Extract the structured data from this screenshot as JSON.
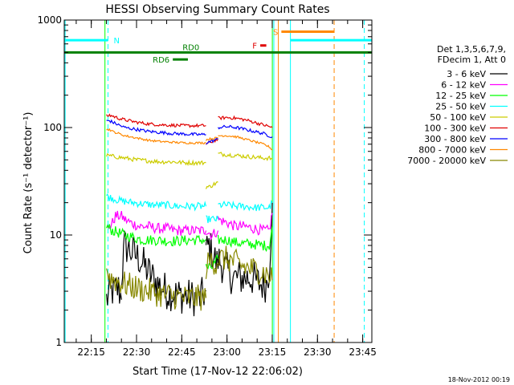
{
  "chart_data": {
    "type": "line",
    "title": "HESSI Observing Summary Count Rates",
    "xlabel": "Start Time (17-Nov-12 22:06:02)",
    "ylabel": "Count Rate (s⁻¹ detector⁻¹)",
    "y_scale": "log",
    "ylim": [
      1,
      1000
    ],
    "x_unit": "minutes after 22:06:02",
    "xlim": [
      0,
      102
    ],
    "x_tick_labels": [
      "22:15",
      "22:30",
      "22:45",
      "23:00",
      "23:15",
      "23:30",
      "23:45"
    ],
    "y_tick_labels": [
      "1",
      "10",
      "100",
      "1000"
    ],
    "legend": {
      "placement": "right",
      "header": [
        "Det 1,3,5,6,7,9,",
        "FDecim 1, Att 0"
      ],
      "entries": [
        {
          "label": "3 - 6 keV",
          "color": "#000000"
        },
        {
          "label": "6 - 12 keV",
          "color": "#ff00ff"
        },
        {
          "label": "12 - 25 keV",
          "color": "#00ff00"
        },
        {
          "label": "25 - 50 keV",
          "color": "#00ffff"
        },
        {
          "label": "50 - 100 keV",
          "color": "#cccc00"
        },
        {
          "label": "100 - 300 keV",
          "color": "#e00000"
        },
        {
          "label": "300 - 800 keV",
          "color": "#0000ff"
        },
        {
          "label": "800 - 7000 keV",
          "color": "#ff8800"
        },
        {
          "label": "7000 - 20000 keV",
          "color": "#888800"
        }
      ]
    },
    "series": [
      {
        "name": "3 - 6 keV",
        "color": "#000000",
        "noise": 0.35,
        "segments": [
          {
            "x": [
              14,
              15,
              16,
              17,
              18,
              19
            ],
            "y": [
              2.5,
              2.8,
              3.0,
              3.0,
              3.2,
              2.5
            ]
          },
          {
            "x": [
              19,
              20,
              25,
              28,
              31,
              34,
              37,
              40,
              43,
              45,
              47
            ],
            "y": [
              4,
              8,
              6,
              4.5,
              3.5,
              3.0,
              2.8,
              2.7,
              2.6,
              2.6,
              3.0
            ]
          },
          {
            "x": [
              47,
              48,
              49,
              50,
              51
            ],
            "y": [
              7,
              8,
              7,
              6,
              5
            ]
          },
          {
            "x": [
              51,
              53,
              56,
              59,
              62,
              65,
              67,
              68,
              69
            ],
            "y": [
              6,
              5,
              4,
              4,
              4,
              3.5,
              3.5,
              5,
              20
            ]
          }
        ]
      },
      {
        "name": "6 - 12 keV",
        "color": "#ff00ff",
        "noise": 0.1,
        "segments": [
          {
            "x": [
              14,
              16,
              17,
              19,
              20,
              22,
              25,
              28,
              31,
              34,
              37,
              40,
              43,
              46,
              47
            ],
            "y": [
              11,
              13,
              15,
              15,
              14,
              13,
              12,
              12,
              11.5,
              11.5,
              11,
              11,
              11,
              11,
              11
            ]
          },
          {
            "x": [
              47,
              49,
              51
            ],
            "y": [
              11,
              10,
              11
            ]
          },
          {
            "x": [
              51,
              54,
              57,
              60,
              63,
              66,
              68,
              69
            ],
            "y": [
              14,
              13,
              12,
              12,
              11.5,
              11,
              11,
              16
            ]
          }
        ]
      },
      {
        "name": "12 - 25 keV",
        "color": "#00ff00",
        "noise": 0.1,
        "segments": [
          {
            "x": [
              14,
              16,
              18,
              20,
              23,
              26,
              30,
              34,
              38,
              42,
              46,
              47
            ],
            "y": [
              12,
              11,
              10.5,
              10,
              9.5,
              9,
              9,
              8.8,
              8.8,
              9,
              9,
              9
            ]
          },
          {
            "x": [
              47,
              49,
              51
            ],
            "y": [
              5,
              5,
              6
            ]
          },
          {
            "x": [
              51,
              54,
              57,
              60,
              63,
              66,
              68,
              69
            ],
            "y": [
              9,
              9,
              8.5,
              8.3,
              8.2,
              8,
              8,
              12
            ]
          }
        ]
      },
      {
        "name": "25 - 50 keV",
        "color": "#00ffff",
        "noise": 0.07,
        "segments": [
          {
            "x": [
              14,
              16,
              18,
              20,
              23,
              26,
              30,
              34,
              38,
              42,
              46,
              47
            ],
            "y": [
              23,
              22,
              21,
              20.5,
              20,
              19.5,
              19,
              19,
              18.5,
              18.5,
              18.5,
              18.5
            ]
          },
          {
            "x": [
              47,
              49,
              51
            ],
            "y": [
              14,
              14,
              14
            ]
          },
          {
            "x": [
              51,
              54,
              57,
              60,
              63,
              66,
              68,
              69
            ],
            "y": [
              19,
              19,
              18.5,
              18.5,
              18,
              18,
              18,
              20
            ]
          }
        ]
      },
      {
        "name": "50 - 100 keV",
        "color": "#cccc00",
        "noise": 0.04,
        "segments": [
          {
            "x": [
              14,
              16,
              18,
              20,
              24,
              28,
              32,
              36,
              40,
              44,
              47
            ],
            "y": [
              55,
              54,
              53,
              52,
              50,
              49,
              48,
              48,
              47,
              47,
              47
            ]
          },
          {
            "x": [
              47,
              48,
              49,
              50,
              51
            ],
            "y": [
              28,
              28,
              29,
              30,
              31
            ]
          },
          {
            "x": [
              51,
              54,
              57,
              60,
              63,
              66,
              68,
              69
            ],
            "y": [
              57,
              56,
              55,
              54,
              53,
              52,
              52,
              51
            ]
          }
        ]
      },
      {
        "name": "100 - 300 keV",
        "color": "#e00000",
        "noise": 0.03,
        "segments": [
          {
            "x": [
              14,
              15,
              16,
              18,
              20,
              24,
              28,
              32,
              36,
              40,
              44,
              47
            ],
            "y": [
              128,
              130,
              128,
              122,
              118,
              112,
              108,
              106,
              105,
              104,
              104,
              104
            ]
          },
          {
            "x": [
              47,
              49,
              51
            ],
            "y": [
              70,
              74,
              78
            ]
          },
          {
            "x": [
              51,
              54,
              57,
              60,
              63,
              66,
              68,
              69
            ],
            "y": [
              122,
              124,
              122,
              118,
              112,
              106,
              102,
              100
            ]
          }
        ]
      },
      {
        "name": "300 - 800 keV",
        "color": "#0000ff",
        "noise": 0.03,
        "segments": [
          {
            "x": [
              14,
              15,
              16,
              18,
              20,
              24,
              28,
              32,
              36,
              40,
              44,
              47
            ],
            "y": [
              115,
              116,
              112,
              106,
              100,
              96,
              92,
              90,
              88,
              87,
              86,
              86
            ]
          },
          {
            "x": [
              47,
              49,
              51
            ],
            "y": [
              72,
              75,
              78
            ]
          },
          {
            "x": [
              51,
              54,
              57,
              60,
              63,
              66,
              68,
              69
            ],
            "y": [
              100,
              102,
              100,
              96,
              92,
              88,
              84,
              82
            ]
          }
        ]
      },
      {
        "name": "800 - 7000 keV",
        "color": "#ff8800",
        "noise": 0.02,
        "segments": [
          {
            "x": [
              14,
              15,
              16,
              18,
              20,
              24,
              28,
              32,
              36,
              40,
              44,
              47
            ],
            "y": [
              95,
              96,
              92,
              88,
              84,
              80,
              76,
              74,
              73,
              72,
              72,
              72
            ]
          },
          {
            "x": [
              47,
              49,
              51
            ],
            "y": [
              77,
              79,
              80
            ]
          },
          {
            "x": [
              51,
              54,
              57,
              60,
              63,
              66,
              68,
              69
            ],
            "y": [
              84,
              84,
              82,
              78,
              74,
              70,
              66,
              62
            ]
          }
        ]
      },
      {
        "name": "7000 - 20000 keV",
        "color": "#888800",
        "noise": 0.25,
        "segments": [
          {
            "x": [
              14,
              15,
              17,
              20,
              24,
              28,
              32,
              36,
              40,
              44,
              47
            ],
            "y": [
              5,
              4,
              3.8,
              3.5,
              3.2,
              3.0,
              2.8,
              2.7,
              2.6,
              2.6,
              2.6
            ]
          },
          {
            "x": [
              47,
              48,
              49,
              50,
              51
            ],
            "y": [
              5,
              5.5,
              6,
              5.5,
              5.5
            ]
          },
          {
            "x": [
              51,
              54,
              57,
              60,
              63,
              66,
              68,
              69
            ],
            "y": [
              6,
              6,
              5.5,
              5,
              4.8,
              4.5,
              4.2,
              3.8
            ]
          }
        ]
      }
    ],
    "flags": [
      {
        "label": "N",
        "color": "#00ffff",
        "y": 650,
        "x_start": 0,
        "x_end": 14.5
      },
      {
        "label": "",
        "color": "#00ffff",
        "y": 650,
        "x_start": 75,
        "x_end": 102
      },
      {
        "label": "RD0",
        "color": "#008000",
        "y": 500,
        "x_start": 0,
        "x_end": 102
      },
      {
        "label": "RD6",
        "color": "#008000",
        "y": 430,
        "x_start": 36,
        "x_end": 41
      },
      {
        "label": "S",
        "color": "#ff8800",
        "y": 780,
        "x_start": 72,
        "x_end": 89.5
      },
      {
        "label": "F",
        "color": "#e00000",
        "y": 580,
        "x_start": 65,
        "x_end": 67
      }
    ],
    "vertical_markers": [
      {
        "x": 0.3,
        "color": "#00ffff",
        "style": "solid"
      },
      {
        "x": 14.5,
        "color": "#00ffff",
        "style": "dashed"
      },
      {
        "x": 69.5,
        "color": "#00ffff",
        "style": "solid"
      },
      {
        "x": 75,
        "color": "#00ffff",
        "style": "solid"
      },
      {
        "x": 99.5,
        "color": "#00ffff",
        "style": "dashed"
      },
      {
        "x": 13.5,
        "color": "#00ff00",
        "style": "solid"
      },
      {
        "x": 69,
        "color": "#00ff00",
        "style": "solid"
      },
      {
        "x": 71,
        "color": "#ff8800",
        "style": "solid"
      },
      {
        "x": 89.5,
        "color": "#ff8800",
        "style": "dashed"
      }
    ],
    "footer": "18-Nov-2012 00:19"
  }
}
